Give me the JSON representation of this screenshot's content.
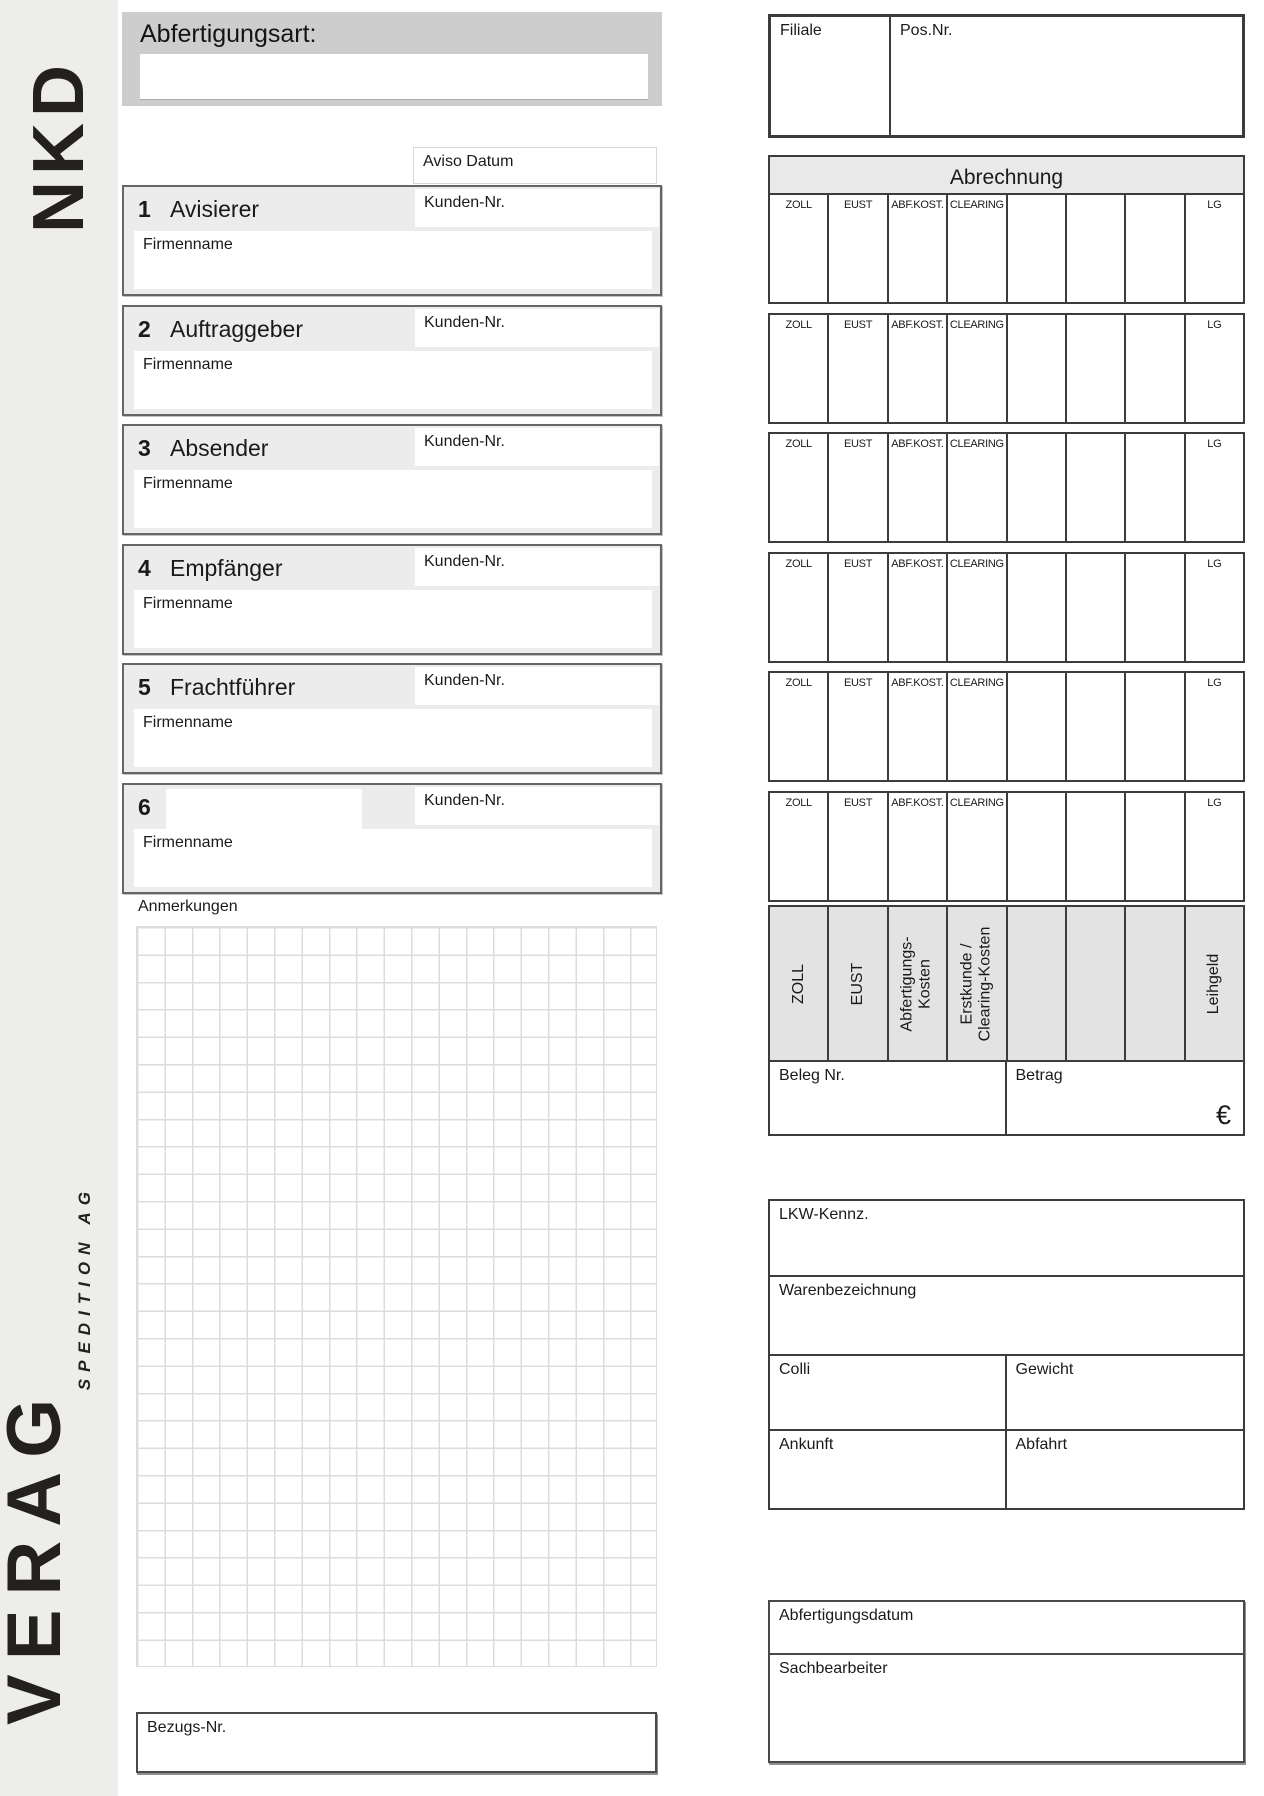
{
  "brand": {
    "logo_top": "NKD",
    "logo_bottom": "VERAG",
    "logo_bottom_sub": "SPEDITION AG"
  },
  "header": {
    "abfertigungsart_label": "Abfertigungsart:",
    "filiale_label": "Filiale",
    "pos_nr_label": "Pos.Nr."
  },
  "aviso": {
    "label": "Aviso Datum"
  },
  "parties": [
    {
      "number": "1",
      "label": "Avisierer",
      "kunden_label": "Kunden-Nr.",
      "firma_label": "Firmenname"
    },
    {
      "number": "2",
      "label": "Auftraggeber",
      "kunden_label": "Kunden-Nr.",
      "firma_label": "Firmenname"
    },
    {
      "number": "3",
      "label": "Absender",
      "kunden_label": "Kunden-Nr.",
      "firma_label": "Firmenname"
    },
    {
      "number": "4",
      "label": "Empfänger",
      "kunden_label": "Kunden-Nr.",
      "firma_label": "Firmenname"
    },
    {
      "number": "5",
      "label": "Frachtführer",
      "kunden_label": "Kunden-Nr.",
      "firma_label": "Firmenname"
    },
    {
      "number": "6",
      "label": "",
      "kunden_label": "Kunden-Nr.",
      "firma_label": "Firmenname"
    }
  ],
  "abrechnung": {
    "title": "Abrechnung",
    "column_headers": [
      "ZOLL",
      "EUST",
      "ABF.KOST.",
      "CLEARING",
      "",
      "",
      "",
      "LG"
    ],
    "vertical_labels": [
      "ZOLL",
      "EUST",
      "Abfertigungs-\nKosten",
      "Erstkunde /\nClearing-Kosten",
      "",
      "",
      "",
      "Leihgeld"
    ],
    "beleg_label": "Beleg Nr.",
    "betrag_label": "Betrag",
    "currency_symbol": "€"
  },
  "anmerkungen": {
    "label": "Anmerkungen"
  },
  "shipment": {
    "lkw_label": "LKW-Kennz.",
    "waren_label": "Warenbezeichnung",
    "colli_label": "Colli",
    "gewicht_label": "Gewicht",
    "ankunft_label": "Ankunft",
    "abfahrt_label": "Abfahrt"
  },
  "processing": {
    "abfertigungsdatum_label": "Abfertigungsdatum",
    "sachbearbeiter_label": "Sachbearbeiter"
  },
  "bezug": {
    "label": "Bezugs-Nr."
  },
  "colors": {
    "sidebar_bg": "#EDEDEB",
    "panel_gray": "#CDCDCD",
    "section_gray": "#ECECEC",
    "header_gray": "#E9E9E9",
    "vertical_gray": "#E3E3E3",
    "border_dark": "#3C3C3C",
    "border_mid": "#666666",
    "grid_line": "#DCDCDC",
    "logo_ink": "#23201D",
    "text": "#1A1A1A"
  }
}
